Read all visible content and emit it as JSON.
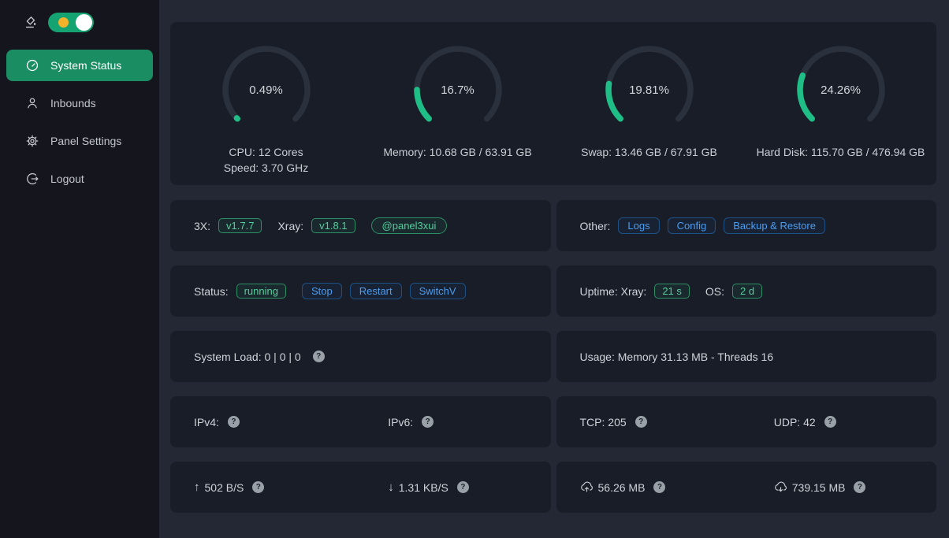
{
  "sidebar": {
    "theme_toggle": {
      "state": "on"
    },
    "items": [
      {
        "label": "System Status",
        "icon": "dashboard-icon",
        "active": true
      },
      {
        "label": "Inbounds",
        "icon": "user-icon",
        "active": false
      },
      {
        "label": "Panel Settings",
        "icon": "gear-icon",
        "active": false
      },
      {
        "label": "Logout",
        "icon": "logout-icon",
        "active": false
      }
    ]
  },
  "overview": {
    "gauges": [
      {
        "percent": 0.49,
        "percent_label": "0.49%",
        "lines": [
          "CPU: 12 Cores",
          "Speed: 3.70 GHz"
        ]
      },
      {
        "percent": 16.7,
        "percent_label": "16.7%",
        "lines": [
          "Memory: 10.68 GB / 63.91 GB"
        ]
      },
      {
        "percent": 19.81,
        "percent_label": "19.81%",
        "lines": [
          "Swap: 13.46 GB / 67.91 GB"
        ]
      },
      {
        "percent": 24.26,
        "percent_label": "24.26%",
        "lines": [
          "Hard Disk: 115.70 GB / 476.94 GB"
        ]
      }
    ]
  },
  "rows": {
    "version": {
      "label": "3X:",
      "version_3x": "v1.7.7",
      "xray_label": "Xray:",
      "xray_version": "v1.8.1",
      "telegram": "@panel3xui"
    },
    "other": {
      "label": "Other:",
      "logs": "Logs",
      "config": "Config",
      "backup": "Backup & Restore"
    },
    "status": {
      "label": "Status:",
      "state": "running",
      "stop": "Stop",
      "restart": "Restart",
      "switch": "SwitchV"
    },
    "uptime": {
      "label": "Uptime: Xray:",
      "xray_uptime": "21 s",
      "os_label": "OS:",
      "os_uptime": "2 d"
    },
    "system_load": {
      "text": "System Load: 0 | 0 | 0"
    },
    "usage": {
      "text": "Usage: Memory 31.13 MB - Threads 16"
    },
    "ip": {
      "ipv4_label": "IPv4:",
      "ipv6_label": "IPv6:"
    },
    "connections": {
      "tcp": "TCP: 205",
      "udp": "UDP: 42"
    },
    "speed": {
      "upload": "502 B/S",
      "download": "1.31 KB/S",
      "up_arrow": "↑",
      "down_arrow": "↓"
    },
    "totals": {
      "sent": "56.26 MB",
      "received": "739.15 MB"
    },
    "help_glyph": "?"
  },
  "colors": {
    "sidebar_bg": "#15151e",
    "page_bg": "#232834",
    "card_bg": "#181d28",
    "active_item_green": "#1b8d63",
    "gauge_green": "#1fbe87",
    "gauge_track": "#2a303c",
    "tag_green_text": "#55cf9d",
    "button_blue_text": "#4b9df0",
    "toggle_track_green": "#16a372",
    "toggle_sun_orange": "#f5b32c"
  }
}
